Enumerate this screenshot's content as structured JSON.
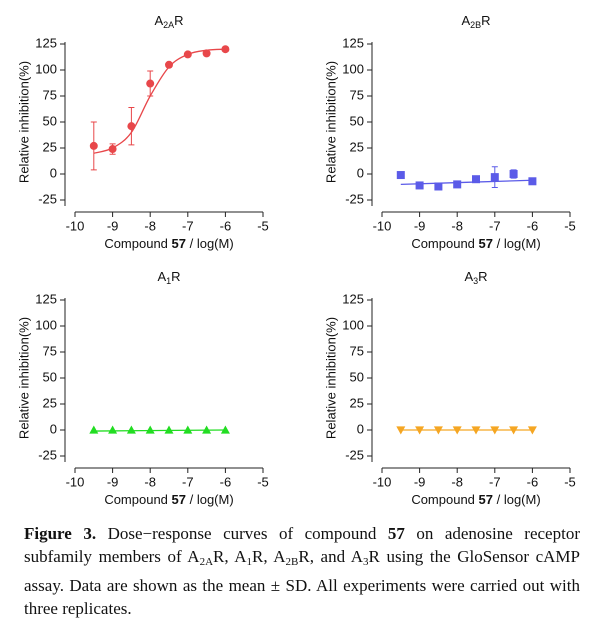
{
  "chart_data": [
    {
      "type": "dose-response",
      "title": [
        {
          "text": "A"
        },
        {
          "text": "2A",
          "style": "sub"
        },
        {
          "text": "R"
        }
      ],
      "xlabel": [
        {
          "text": "Compound "
        },
        {
          "text": "57",
          "style": "bold"
        },
        {
          "text": " / log(M)"
        }
      ],
      "ylabel": "Relative inhibition(%)",
      "xlim": [
        -10,
        -5
      ],
      "xticks": [
        -10,
        -9,
        -8,
        -7,
        -6,
        -5
      ],
      "ylim": [
        -25,
        125
      ],
      "yticks": [
        -25,
        0,
        25,
        50,
        75,
        100,
        125
      ],
      "x": [
        -9.5,
        -9,
        -8.5,
        -8,
        -7.5,
        -7,
        -6.5,
        -6
      ],
      "series": [
        {
          "color": "#e8474a",
          "marker": "circle",
          "values": [
            27,
            24,
            46,
            87,
            105,
            115,
            116,
            120
          ],
          "errors": [
            23,
            5,
            18,
            12,
            1,
            1,
            1,
            1
          ]
        },
        {
          "color": "#e8474a",
          "marker": "none",
          "x": [
            -9.5,
            -9,
            -8.5,
            -8,
            -7.5,
            -7,
            -6.5,
            -6
          ],
          "values": [
            20,
            25,
            40,
            75,
            103,
            115,
            119,
            120
          ]
        }
      ]
    },
    {
      "type": "dose-response",
      "title": [
        {
          "text": "A"
        },
        {
          "text": "2B",
          "style": "sub"
        },
        {
          "text": "R"
        }
      ],
      "xlabel": [
        {
          "text": "Compound "
        },
        {
          "text": "57",
          "style": "bold"
        },
        {
          "text": " / log(M)"
        }
      ],
      "ylabel": "Relative inhibition(%)",
      "xlim": [
        -10,
        -5
      ],
      "xticks": [
        -10,
        -9,
        -8,
        -7,
        -6,
        -5
      ],
      "ylim": [
        -25,
        125
      ],
      "yticks": [
        -25,
        0,
        25,
        50,
        75,
        100,
        125
      ],
      "x": [
        -9.5,
        -9,
        -8.5,
        -8,
        -7.5,
        -7,
        -6.5,
        -6
      ],
      "series": [
        {
          "color": "#5b5be8",
          "marker": "square",
          "values": [
            -1,
            -11,
            -12,
            -10,
            -5,
            -3,
            0,
            -7
          ],
          "errors": [
            2,
            2,
            3,
            2,
            2,
            10,
            4,
            3
          ]
        },
        {
          "color": "#5b5be8",
          "marker": "none",
          "x": [
            -9.5,
            -6
          ],
          "values": [
            -10,
            -6
          ]
        }
      ]
    },
    {
      "type": "dose-response",
      "title": [
        {
          "text": "A"
        },
        {
          "text": "1",
          "style": "sub"
        },
        {
          "text": "R"
        }
      ],
      "xlabel": [
        {
          "text": "Compound "
        },
        {
          "text": "57",
          "style": "bold"
        },
        {
          "text": " / log(M)"
        }
      ],
      "ylabel": "Relative inhibition(%)",
      "xlim": [
        -10,
        -5
      ],
      "xticks": [
        -10,
        -9,
        -8,
        -7,
        -6,
        -5
      ],
      "ylim": [
        -25,
        125
      ],
      "yticks": [
        -25,
        0,
        25,
        50,
        75,
        100,
        125
      ],
      "x": [
        -9.5,
        -9,
        -8.5,
        -8,
        -7.5,
        -7,
        -6.5,
        -6
      ],
      "series": [
        {
          "color": "#22dd22",
          "marker": "triangle",
          "values": [
            0,
            0,
            0,
            0,
            0,
            0,
            0,
            0
          ]
        },
        {
          "color": "#22dd22",
          "marker": "none",
          "x": [
            -9.5,
            -6
          ],
          "values": [
            -1,
            0
          ]
        }
      ]
    },
    {
      "type": "dose-response",
      "title": [
        {
          "text": "A"
        },
        {
          "text": "3",
          "style": "sub"
        },
        {
          "text": "R"
        }
      ],
      "xlabel": [
        {
          "text": "Compound "
        },
        {
          "text": "57",
          "style": "bold"
        },
        {
          "text": " / log(M)"
        }
      ],
      "ylabel": "Relative inhibition(%)",
      "xlim": [
        -10,
        -5
      ],
      "xticks": [
        -10,
        -9,
        -8,
        -7,
        -6,
        -5
      ],
      "ylim": [
        -25,
        125
      ],
      "yticks": [
        -25,
        0,
        25,
        50,
        75,
        100,
        125
      ],
      "x": [
        -9.5,
        -9,
        -8.5,
        -8,
        -7.5,
        -7,
        -6.5,
        -6
      ],
      "series": [
        {
          "color": "#f5a623",
          "marker": "triangle-down",
          "values": [
            0,
            0,
            0,
            0,
            0,
            0,
            0,
            0
          ]
        },
        {
          "color": "#f5a623",
          "marker": "none",
          "x": [
            -9.5,
            -6
          ],
          "values": [
            0,
            0
          ]
        }
      ]
    }
  ],
  "caption": [
    {
      "text": "Figure 3.",
      "style": "bold"
    },
    {
      "text": " Dose−response curves of compound "
    },
    {
      "text": "57",
      "style": "bold"
    },
    {
      "text": " on adenosine receptor subfamily members of A"
    },
    {
      "text": "2A",
      "style": "sub"
    },
    {
      "text": "R, A"
    },
    {
      "text": "1",
      "style": "sub"
    },
    {
      "text": "R, A"
    },
    {
      "text": "2B",
      "style": "sub"
    },
    {
      "text": "R, and A"
    },
    {
      "text": "3",
      "style": "sub"
    },
    {
      "text": "R using the GloSensor cAMP assay. Data are shown as the mean ± SD. All experiments were carried out with three replicates."
    }
  ]
}
